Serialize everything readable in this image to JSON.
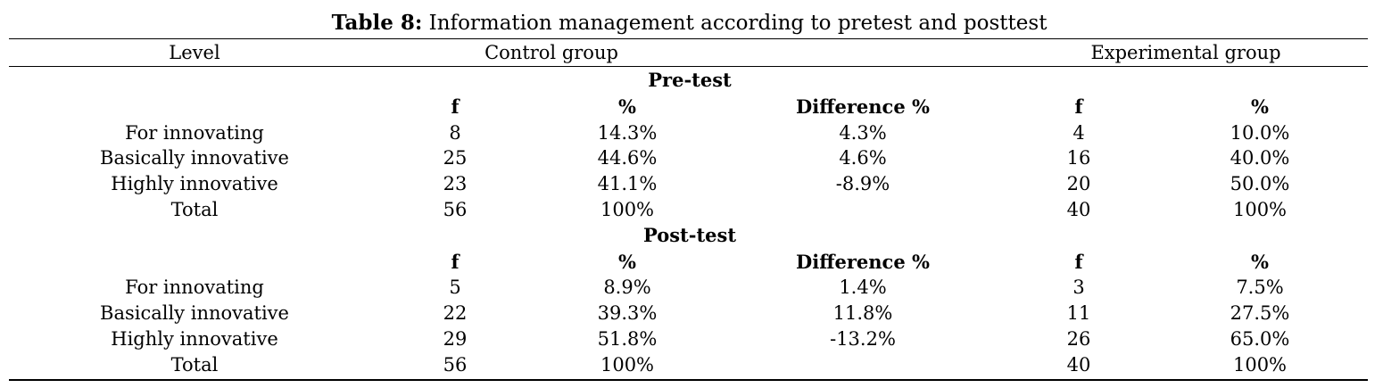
{
  "caption": {
    "label": "Table 8:",
    "text": "Information management according to pretest and posttest"
  },
  "header": {
    "level": "Level",
    "control": "Control group",
    "experimental": "Experimental group"
  },
  "sections": [
    {
      "title": "Pre-test",
      "subheaders": [
        "f",
        "%",
        "Difference %",
        "f",
        "%"
      ],
      "rows": [
        {
          "level": "For innovating",
          "c_f": "8",
          "c_pct": "14.3%",
          "diff": "4.3%",
          "e_f": "4",
          "e_pct": "10.0%"
        },
        {
          "level": "Basically innovative",
          "c_f": "25",
          "c_pct": "44.6%",
          "diff": "4.6%",
          "e_f": "16",
          "e_pct": "40.0%"
        },
        {
          "level": "Highly innovative",
          "c_f": "23",
          "c_pct": "41.1%",
          "diff": "-8.9%",
          "e_f": "20",
          "e_pct": "50.0%"
        },
        {
          "level": "Total",
          "c_f": "56",
          "c_pct": "100%",
          "diff": "",
          "e_f": "40",
          "e_pct": "100%"
        }
      ]
    },
    {
      "title": "Post-test",
      "subheaders": [
        "f",
        "%",
        "Difference %",
        "f",
        "%"
      ],
      "rows": [
        {
          "level": "For innovating",
          "c_f": "5",
          "c_pct": "8.9%",
          "diff": "1.4%",
          "e_f": "3",
          "e_pct": "7.5%"
        },
        {
          "level": "Basically innovative",
          "c_f": "22",
          "c_pct": "39.3%",
          "diff": "11.8%",
          "e_f": "11",
          "e_pct": "27.5%"
        },
        {
          "level": "Highly innovative",
          "c_f": "29",
          "c_pct": "51.8%",
          "diff": "-13.2%",
          "e_f": "26",
          "e_pct": "65.0%"
        },
        {
          "level": "Total",
          "c_f": "56",
          "c_pct": "100%",
          "diff": "",
          "e_f": "40",
          "e_pct": "100%"
        }
      ]
    }
  ]
}
